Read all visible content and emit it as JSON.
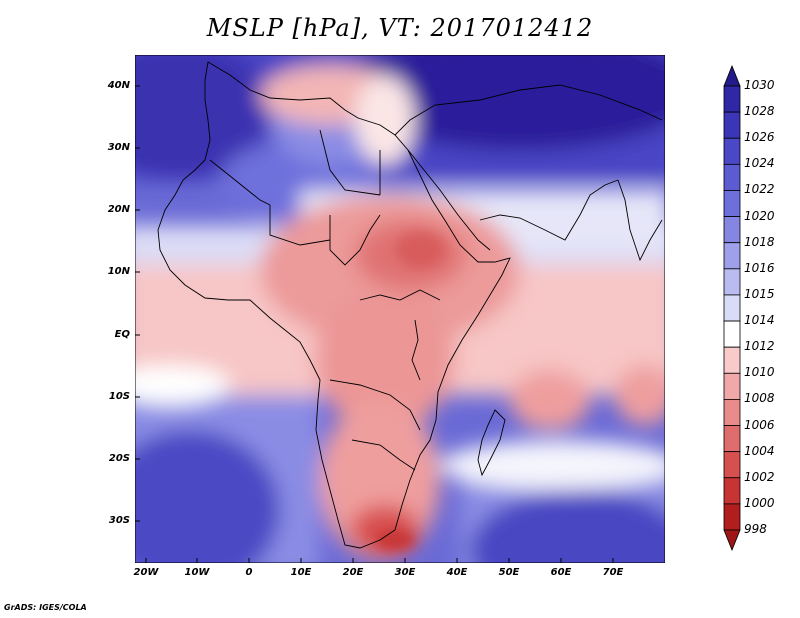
{
  "title": "MSLP [hPa], VT: 2017012412",
  "credit": "GrADS: IGES/COLA",
  "colors": {
    "high_deep": "#2a1f9a",
    "high_mid": "#7f7fe0",
    "neutral": "#ffffff",
    "low_mid": "#f2a0a0",
    "low_deep": "#b02020"
  },
  "chart_data": {
    "type": "heatmap",
    "title": "MSLP [hPa], VT: 2017012412",
    "variable": "Mean sea level pressure",
    "units": "hPa",
    "valid_time": "2017012412",
    "x_range": [
      -25,
      80
    ],
    "y_range": [
      -36,
      45
    ],
    "lat_ticks": [
      "40N",
      "30N",
      "20N",
      "10N",
      "EQ",
      "10S",
      "20S",
      "30S"
    ],
    "lat_tick_values": [
      40,
      30,
      20,
      10,
      0,
      -10,
      -20,
      -30
    ],
    "lon_ticks": [
      "20W",
      "10W",
      "0",
      "10E",
      "20E",
      "30E",
      "40E",
      "50E",
      "60E",
      "70E"
    ],
    "lon_tick_values": [
      -20,
      -10,
      0,
      10,
      20,
      30,
      40,
      50,
      60,
      70
    ],
    "colorbar": {
      "labels": [
        "1030",
        "1028",
        "1026",
        "1024",
        "1022",
        "1020",
        "1018",
        "1016",
        "1015",
        "1014",
        "1012",
        "1010",
        "1008",
        "1006",
        "1004",
        "1002",
        "1000",
        "998"
      ],
      "colors": [
        "#241a8c",
        "#2f27a6",
        "#3b36b8",
        "#4a48c6",
        "#5b5bd2",
        "#6d6fdb",
        "#8486e2",
        "#9ea0ea",
        "#babcf0",
        "#dadcf7",
        "#ffffff",
        "#f8caca",
        "#f1a8a8",
        "#e98b8b",
        "#e06d6d",
        "#d65050",
        "#c83434",
        "#b21d1d",
        "#a01515"
      ]
    }
  }
}
